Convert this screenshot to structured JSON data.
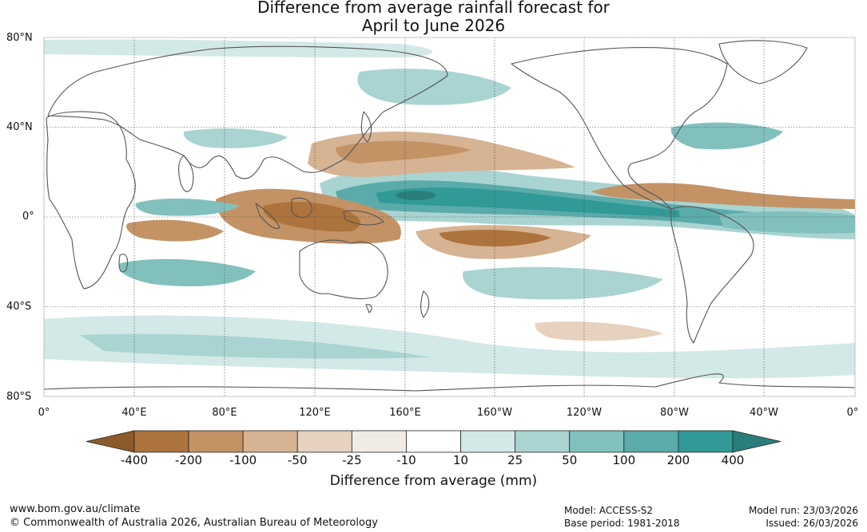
{
  "title": {
    "line1": "Difference from average rainfall forecast for",
    "line2": "April to June 2026"
  },
  "map": {
    "lat_labels": [
      "80°N",
      "40°N",
      "0°",
      "40°S",
      "80°S"
    ],
    "lon_labels": [
      "0°",
      "40°E",
      "80°E",
      "120°E",
      "160°E",
      "160°W",
      "120°W",
      "80°W",
      "40°W",
      "0°"
    ]
  },
  "colorbar": {
    "title": "Difference from average (mm)",
    "tick_labels": [
      "-400",
      "-200",
      "-100",
      "-50",
      "-25",
      "-10",
      "10",
      "25",
      "50",
      "100",
      "200",
      "400"
    ],
    "bins": [
      {
        "range": "< -400",
        "color": "#8c5a2b"
      },
      {
        "range": "-400 to -200",
        "color": "#ad733c"
      },
      {
        "range": "-200 to -100",
        "color": "#c39366"
      },
      {
        "range": "-100 to -50",
        "color": "#d6b392"
      },
      {
        "range": "-50 to -25",
        "color": "#e6d2bf"
      },
      {
        "range": "-25 to -10",
        "color": "#f1ebe6"
      },
      {
        "range": "-10 to 10",
        "color": "#ffffff"
      },
      {
        "range": "10 to 25",
        "color": "#d3e9e7"
      },
      {
        "range": "25 to 50",
        "color": "#a9d4d2"
      },
      {
        "range": "50 to 100",
        "color": "#82c0bd"
      },
      {
        "range": "100 to 200",
        "color": "#5aabaa"
      },
      {
        "range": "200 to 400",
        "color": "#319a97"
      },
      {
        "range": "> 400",
        "color": "#2a7e7a"
      }
    ]
  },
  "footer": {
    "url": "www.bom.gov.au/climate",
    "copyright": "© Commonwealth of Australia 2026, Australian Bureau of Meteorology",
    "model": "Model: ACCESS-S2",
    "base_period": "Base period: 1981-2018",
    "model_run": "Model run: 23/03/2026",
    "issued": "Issued: 26/03/2026"
  }
}
